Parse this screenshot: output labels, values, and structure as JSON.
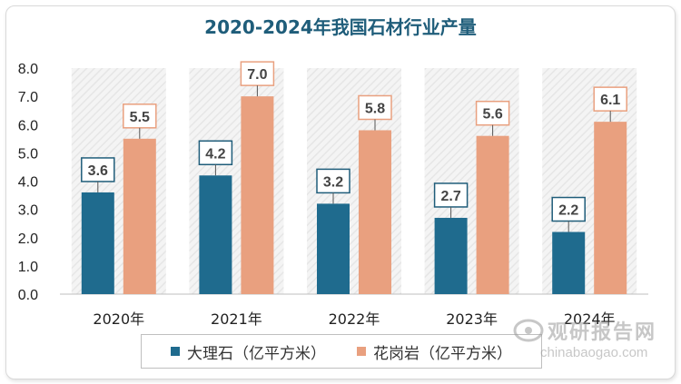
{
  "chart_data": {
    "type": "bar",
    "title": "2020-2024年我国石材行业产量",
    "categories": [
      "2020年",
      "2021年",
      "2022年",
      "2023年",
      "2024年"
    ],
    "series": [
      {
        "name": "大理石（亿平方米）",
        "values": [
          3.6,
          4.2,
          3.2,
          2.7,
          2.2
        ],
        "color": "#1f6b8e"
      },
      {
        "name": "花岗岩（亿平方米）",
        "values": [
          5.5,
          7.0,
          5.8,
          5.6,
          6.1
        ],
        "color": "#e9a07f"
      }
    ],
    "ylim": [
      0,
      8
    ],
    "yticks": [
      "0.0",
      "1.0",
      "2.0",
      "3.0",
      "4.0",
      "5.0",
      "6.0",
      "7.0",
      "8.0"
    ],
    "grid": false,
    "legend_position": "bottom",
    "label_border_colors": [
      "#1f5d7a",
      "#e9a07f"
    ]
  },
  "watermark": {
    "cn": "观研报告网",
    "en": "chinabaogao.com"
  }
}
